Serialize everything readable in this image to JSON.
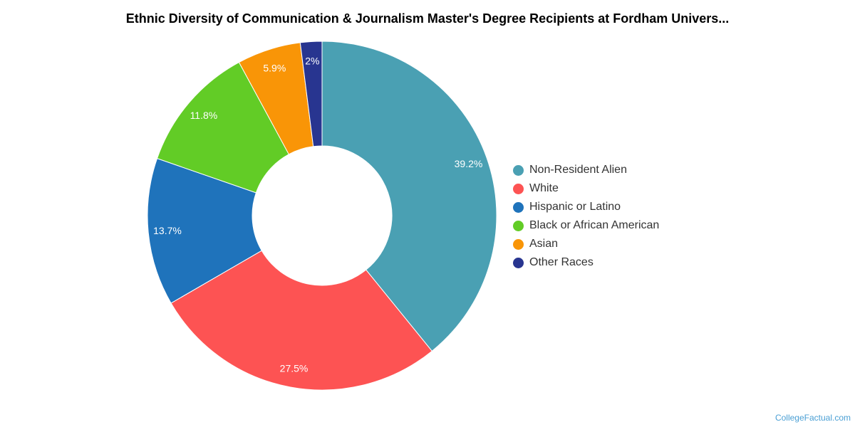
{
  "chart_data": {
    "type": "pie",
    "title": "Ethnic Diversity of Communication & Journalism Master's Degree Recipients at Fordham Univers...",
    "donut": true,
    "legend_position": "right",
    "series": [
      {
        "name": "Non-Resident Alien",
        "value": 39.2,
        "label": "39.2%",
        "color": "#4aa0b3"
      },
      {
        "name": "White",
        "value": 27.5,
        "label": "27.5%",
        "color": "#fd5353"
      },
      {
        "name": "Hispanic or Latino",
        "value": 13.7,
        "label": "13.7%",
        "color": "#1f73bb"
      },
      {
        "name": "Black or African American",
        "value": 11.8,
        "label": "11.8%",
        "color": "#62cc26"
      },
      {
        "name": "Asian",
        "value": 5.9,
        "label": "5.9%",
        "color": "#f99507"
      },
      {
        "name": "Other Races",
        "value": 2,
        "label": "2%",
        "color": "#283590"
      }
    ]
  },
  "watermark": "CollegeFactual.com"
}
